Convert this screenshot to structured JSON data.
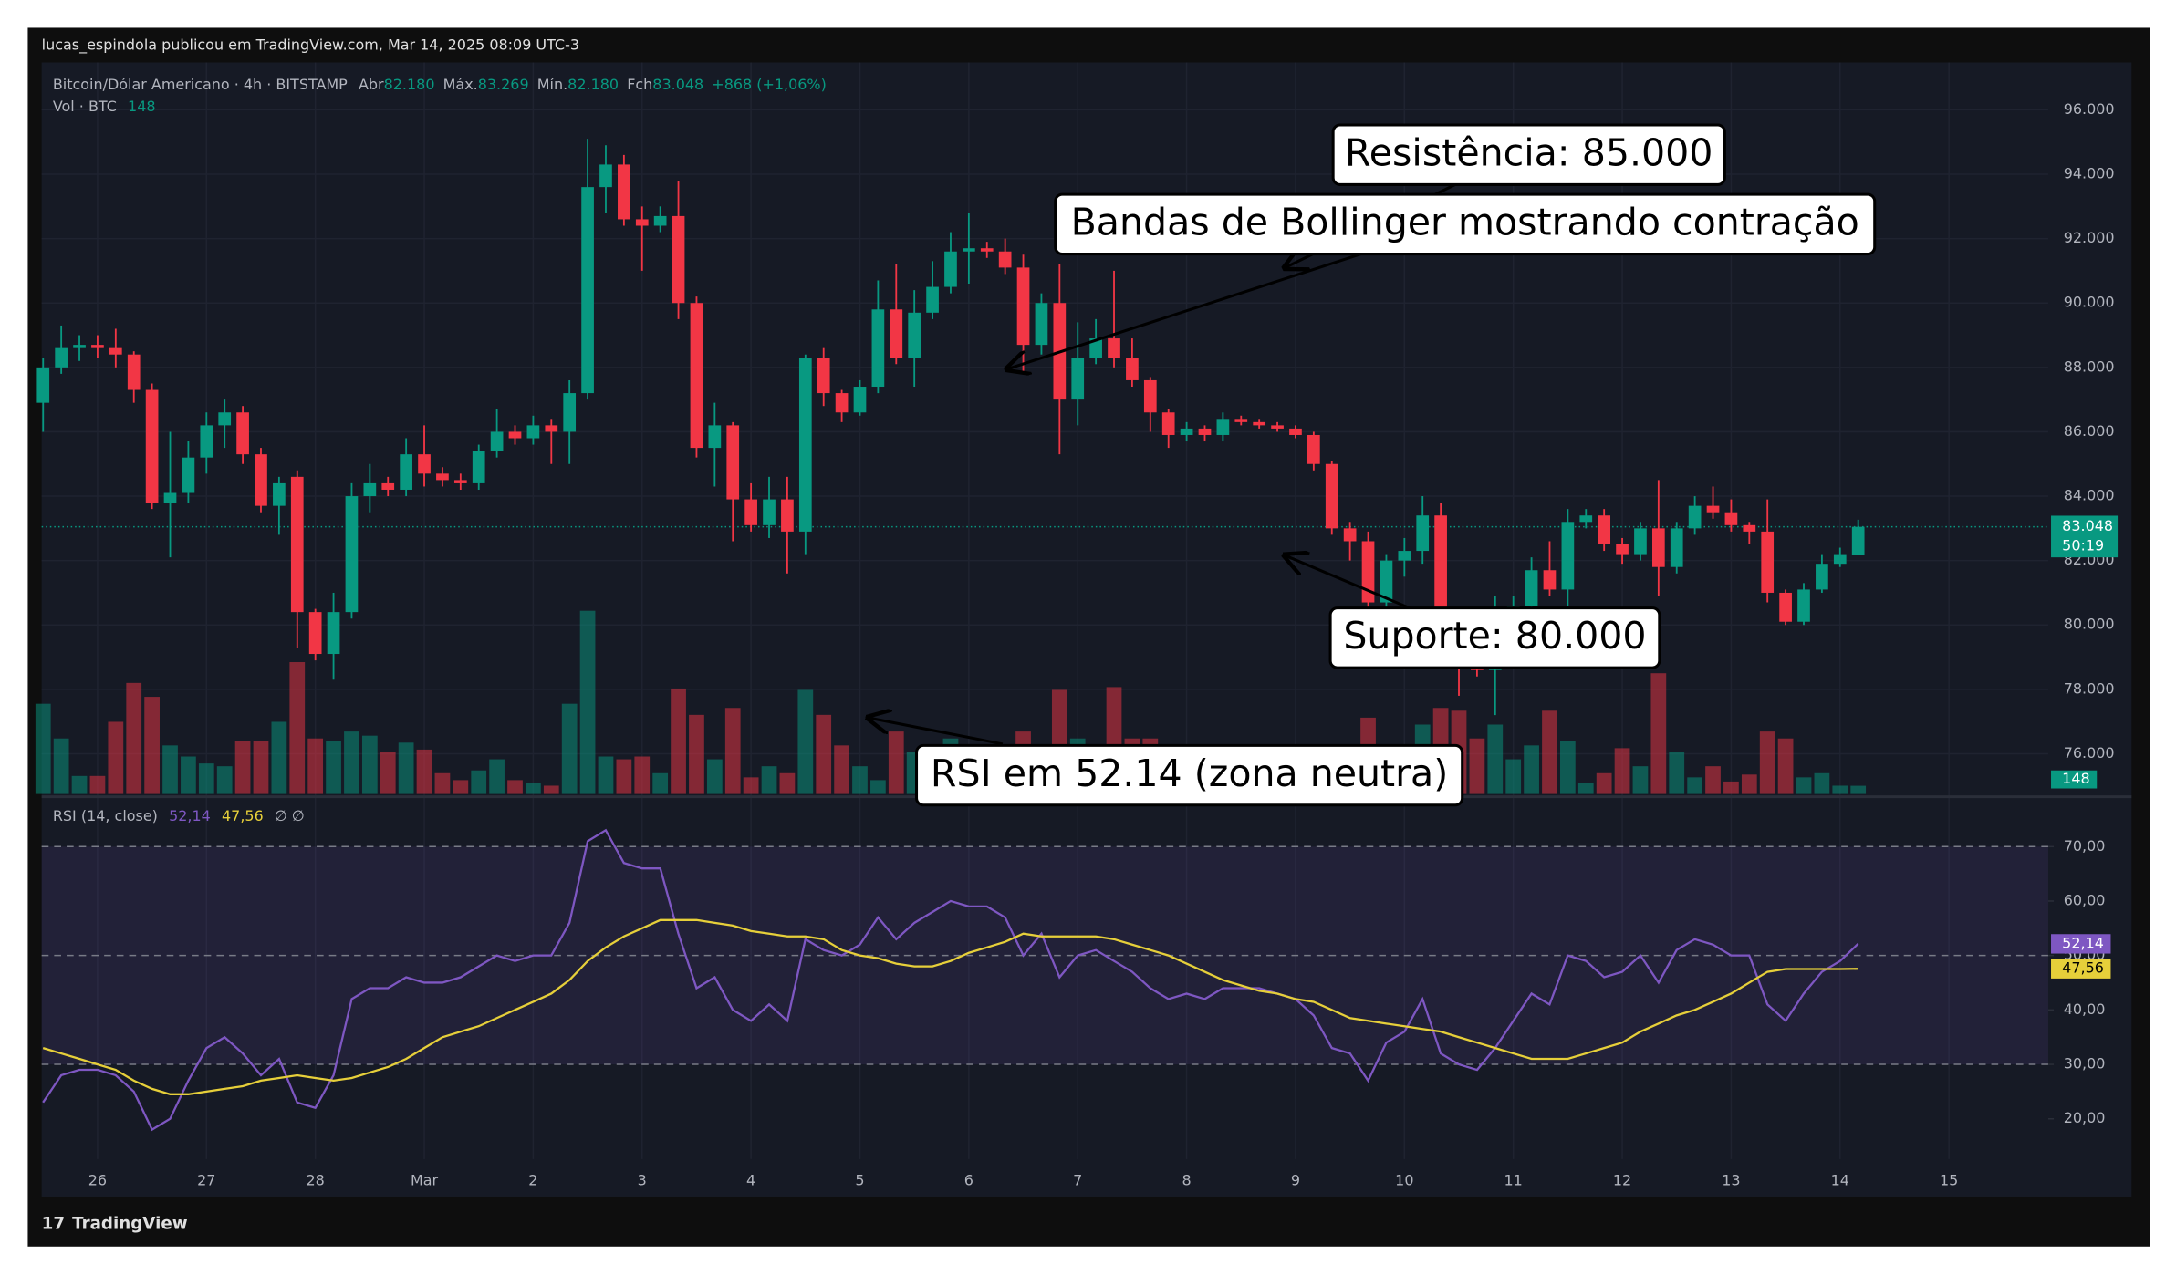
{
  "header": {
    "publisher": "lucas_espindola publicou em TradingView.com, Mar 14, 2025 08:09 UTC-3",
    "footer": "TradingView"
  },
  "chart_data": [
    {
      "type": "candlestick",
      "legend": {
        "symbol": "Bitcoin/Dólar Americano · 4h · BITSTAMP",
        "open_label": "Abr",
        "open": "82.180",
        "high_label": "Máx.",
        "high": "83.269",
        "low_label": "Mín.",
        "low": "82.180",
        "close_label": "Fch",
        "close": "83.048",
        "change": "+868 (+1,06%)",
        "volume_label": "Vol · BTC",
        "volume": "148"
      },
      "up_color": "#089981",
      "down_color": "#f23645",
      "xlim": [
        -0.08,
        110.47
      ],
      "xticks": [
        {
          "value": 3,
          "label": "26"
        },
        {
          "value": 9,
          "label": "27"
        },
        {
          "value": 15,
          "label": "28"
        },
        {
          "value": 21,
          "label": "Mar"
        },
        {
          "value": 27,
          "label": "2"
        },
        {
          "value": 33,
          "label": "3"
        },
        {
          "value": 39,
          "label": "4"
        },
        {
          "value": 45,
          "label": "5"
        },
        {
          "value": 51,
          "label": "6"
        },
        {
          "value": 57,
          "label": "7"
        },
        {
          "value": 63,
          "label": "8"
        },
        {
          "value": 69,
          "label": "9"
        },
        {
          "value": 75,
          "label": "10"
        },
        {
          "value": 81,
          "label": "11"
        },
        {
          "value": 87,
          "label": "12"
        },
        {
          "value": 93,
          "label": "13"
        },
        {
          "value": 99,
          "label": "14"
        },
        {
          "value": 105,
          "label": "15"
        }
      ],
      "ylim": [
        74750,
        97470
      ],
      "yticks": [
        {
          "value": 96000,
          "label": "96.000"
        },
        {
          "value": 94000,
          "label": "94.000"
        },
        {
          "value": 92000,
          "label": "92.000"
        },
        {
          "value": 90000,
          "label": "90.000"
        },
        {
          "value": 88000,
          "label": "88.000"
        },
        {
          "value": 86000,
          "label": "86.000"
        },
        {
          "value": 84000,
          "label": "84.000"
        },
        {
          "value": 82000,
          "label": "82.000"
        },
        {
          "value": 80000,
          "label": "80.000"
        },
        {
          "value": 78000,
          "label": "78.000"
        },
        {
          "value": 76000,
          "label": "76.000"
        }
      ],
      "open": [
        86900,
        88000,
        88600,
        88700,
        88600,
        88400,
        87300,
        83800,
        84100,
        85200,
        86200,
        86600,
        85300,
        83700,
        84600,
        80400,
        79100,
        80400,
        84000,
        84400,
        84200,
        85300,
        84700,
        84500,
        84400,
        85400,
        86000,
        85800,
        86200,
        86000,
        87200,
        93600,
        94300,
        92600,
        92400,
        92700,
        90000,
        85500,
        86200,
        83900,
        83100,
        83900,
        82900,
        88300,
        87200,
        86600,
        87400,
        89800,
        88300,
        89700,
        90500,
        91600,
        91700,
        91600,
        91100,
        88700,
        90000,
        87000,
        88300,
        88900,
        88300,
        87600,
        86600,
        85900,
        86100,
        85900,
        86400,
        86300,
        86200,
        86100,
        85900,
        85000,
        83000,
        82600,
        80700,
        82000,
        82300,
        83400,
        80000,
        78800,
        78600,
        80000,
        80600,
        81700,
        81100,
        83200,
        83400,
        82500,
        82200,
        83000,
        81800,
        83000,
        83700,
        83500,
        83100,
        82900,
        81000,
        80100,
        81100,
        81900,
        82180
      ],
      "high": [
        88300,
        89300,
        89000,
        89000,
        89200,
        88500,
        87500,
        86000,
        85700,
        86600,
        87000,
        86800,
        85500,
        84600,
        84800,
        80500,
        81000,
        84400,
        85000,
        84600,
        85800,
        86200,
        84900,
        84700,
        85600,
        86700,
        86200,
        86500,
        86400,
        87600,
        95100,
        94900,
        94600,
        93000,
        93000,
        93800,
        90200,
        86900,
        86300,
        84400,
        84600,
        84600,
        88400,
        88600,
        87300,
        87600,
        90700,
        91200,
        90400,
        91300,
        92200,
        92800,
        91900,
        92000,
        91500,
        90300,
        91200,
        89400,
        89500,
        91000,
        88900,
        87700,
        86700,
        86300,
        86200,
        86600,
        86500,
        86400,
        86300,
        86200,
        86000,
        85100,
        83200,
        82900,
        82200,
        82700,
        84000,
        83800,
        80400,
        79000,
        80900,
        80900,
        82100,
        82600,
        83600,
        83600,
        83600,
        82700,
        83200,
        84500,
        83200,
        84000,
        84300,
        83900,
        83200,
        83900,
        81100,
        81300,
        82200,
        82400,
        83269
      ],
      "low": [
        86000,
        87800,
        88200,
        88300,
        88000,
        86900,
        83600,
        82100,
        83800,
        84700,
        85500,
        85000,
        83500,
        82800,
        79300,
        78900,
        78300,
        80200,
        83500,
        84000,
        84000,
        84300,
        84300,
        84200,
        84200,
        85200,
        85600,
        85600,
        85000,
        85000,
        87000,
        92800,
        92400,
        91000,
        92200,
        89500,
        85200,
        84300,
        82600,
        82900,
        82700,
        81600,
        82200,
        86800,
        86300,
        86500,
        87200,
        88100,
        87400,
        89500,
        90300,
        90600,
        91400,
        90900,
        87800,
        88400,
        85300,
        86200,
        88100,
        88000,
        87400,
        86000,
        85500,
        85700,
        85700,
        85700,
        86200,
        86100,
        86000,
        85800,
        84800,
        82800,
        82000,
        80400,
        80300,
        81500,
        81900,
        79700,
        77800,
        78400,
        77200,
        80000,
        80300,
        80900,
        80600,
        83000,
        82300,
        81900,
        82000,
        80900,
        81600,
        82800,
        83300,
        82900,
        82500,
        80700,
        80000,
        80000,
        81000,
        81800,
        82180
      ],
      "close": [
        88000,
        88600,
        88700,
        88600,
        88400,
        87300,
        83800,
        84100,
        85200,
        86200,
        86600,
        85300,
        83700,
        84400,
        80400,
        79100,
        80400,
        84000,
        84400,
        84200,
        85300,
        84700,
        84500,
        84400,
        85400,
        86000,
        85800,
        86200,
        86000,
        87200,
        93600,
        94300,
        92600,
        92400,
        92700,
        90000,
        85500,
        86200,
        83900,
        83100,
        83900,
        82900,
        88300,
        87200,
        86600,
        87400,
        89800,
        88300,
        89700,
        90500,
        91600,
        91700,
        91600,
        91100,
        88700,
        90000,
        87000,
        88300,
        88900,
        88300,
        87600,
        86600,
        85900,
        86100,
        85900,
        86400,
        86300,
        86200,
        86100,
        85900,
        85000,
        83000,
        82600,
        80700,
        82000,
        82300,
        83400,
        80000,
        79000,
        78600,
        80000,
        80600,
        81700,
        81100,
        83200,
        83400,
        82500,
        82200,
        83000,
        81800,
        83000,
        83700,
        83500,
        83100,
        82900,
        81000,
        80100,
        81100,
        81900,
        82200,
        83048
      ],
      "last_price_label": "83.048",
      "countdown": "50:19",
      "volume": {
        "ylim": [
          0,
          4000
        ],
        "label": "148",
        "values": [
          1625,
          1000,
          325,
          325,
          1300,
          2000,
          1750,
          875,
          675,
          550,
          500,
          950,
          950,
          1300,
          2375,
          1000,
          950,
          1125,
          1050,
          750,
          925,
          800,
          375,
          250,
          425,
          625,
          250,
          200,
          150,
          1625,
          3300,
          675,
          625,
          675,
          375,
          1900,
          1425,
          625,
          1550,
          300,
          500,
          375,
          1875,
          1425,
          875,
          500,
          250,
          1125,
          750,
          625,
          1000,
          750,
          500,
          625,
          1125,
          750,
          1875,
          1000,
          750,
          1925,
          1000,
          1000,
          625,
          500,
          375,
          250,
          375,
          250,
          250,
          500,
          375,
          625,
          500,
          1375,
          750,
          375,
          1250,
          1550,
          1500,
          1000,
          1250,
          625,
          875,
          1500,
          950,
          200,
          375,
          825,
          500,
          2175,
          750,
          300,
          500,
          225,
          350,
          1125,
          1000,
          300,
          375,
          150,
          148
        ]
      },
      "annotations": [
        {
          "text": "Resistência: 85.000"
        },
        {
          "text": "Bandas de Bollinger mostrando contração"
        },
        {
          "text": "Suporte: 80.000"
        },
        {
          "text": "RSI em 52.14 (zona neutra)"
        }
      ]
    },
    {
      "type": "line",
      "legend": {
        "name": "RSI (14, close)",
        "rsi": "52,14",
        "ma": "47,56",
        "extra": "∅ ∅"
      },
      "xlim": [
        -0.08,
        110.47
      ],
      "ylim": [
        12.6,
        78.9
      ],
      "yticks": [
        {
          "value": 70,
          "label": "70,00"
        },
        {
          "value": 60,
          "label": "60,00"
        },
        {
          "value": 50,
          "label": "50,00"
        },
        {
          "value": 40,
          "label": "40,00"
        },
        {
          "value": 30,
          "label": "30,00"
        },
        {
          "value": 20,
          "label": "20,00"
        }
      ],
      "levels": [
        70,
        50,
        30
      ],
      "series": [
        {
          "name": "RSI",
          "color": "#7e57c2",
          "value_label": "52,14",
          "values": [
            23,
            28,
            29,
            29,
            28,
            25,
            18,
            20,
            27,
            33,
            35,
            32,
            28,
            31,
            23,
            22,
            28,
            42,
            44,
            44,
            46,
            45,
            45,
            46,
            48,
            50,
            49,
            50,
            50,
            56,
            71,
            73,
            67,
            66,
            66,
            54,
            44,
            46,
            40,
            38,
            41,
            38,
            53,
            51,
            50,
            52,
            57,
            53,
            56,
            58,
            60,
            59,
            59,
            57,
            50,
            54,
            46,
            50,
            51,
            49,
            47,
            44,
            42,
            43,
            42,
            44,
            44,
            44,
            43,
            42,
            39,
            33,
            32,
            27,
            34,
            36,
            42,
            32,
            30,
            29,
            33,
            38,
            43,
            41,
            50,
            49,
            46,
            47,
            50,
            45,
            51,
            53,
            52,
            50,
            50,
            41,
            38,
            43,
            47,
            49,
            52.14
          ]
        },
        {
          "name": "MA",
          "color": "#e6cf3a",
          "value_label": "47,56",
          "values": [
            33,
            32,
            31,
            30,
            29,
            27,
            25.5,
            24.5,
            24.5,
            25,
            25.5,
            26,
            27,
            27.5,
            28,
            27.5,
            27,
            27.5,
            28.5,
            29.5,
            31,
            33,
            35,
            36,
            37,
            38.5,
            40,
            41.5,
            43,
            45.5,
            49,
            51.5,
            53.5,
            55,
            56.5,
            56.5,
            56.5,
            56,
            55.5,
            54.5,
            54,
            53.5,
            53.5,
            53,
            51,
            50,
            49.5,
            48.5,
            48,
            48,
            49,
            50.5,
            51.5,
            52.5,
            54,
            53.5,
            53.5,
            53.5,
            53.5,
            53,
            52,
            51,
            50,
            48.5,
            47,
            45.5,
            44.5,
            43.5,
            43,
            42,
            41.5,
            40,
            38.5,
            38,
            37.5,
            37,
            36.5,
            36,
            35,
            34,
            33,
            32,
            31,
            31,
            31,
            32,
            33,
            34,
            36,
            37.5,
            39,
            40,
            41.5,
            43,
            45,
            47,
            47.5,
            47.5,
            47.5,
            47.5,
            47.56
          ]
        }
      ]
    }
  ]
}
